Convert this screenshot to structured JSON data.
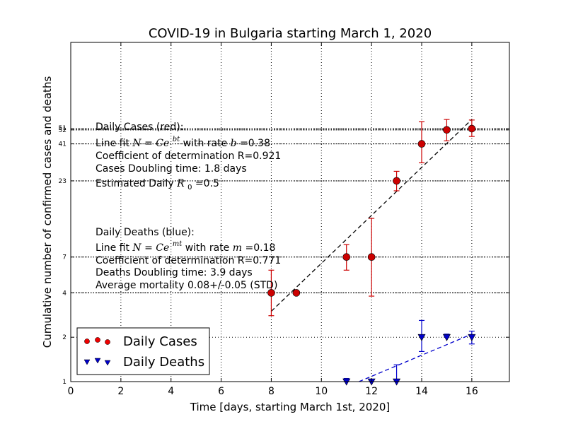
{
  "chart_data": {
    "type": "scatter",
    "title": "COVID-19 in Bulgaria starting March 1, 2020",
    "xlabel": "Time [days, starting March 1st, 2020]",
    "ylabel": "Cumulative number of confirmed cases and deaths",
    "xlim": [
      0,
      17.5
    ],
    "ylim": [
      1,
      200
    ],
    "yscale": "log",
    "grid": true,
    "legend_position": "lower-left",
    "x_ticks": [
      "0",
      "2",
      "4",
      "6",
      "8",
      "10",
      "12",
      "14",
      "16"
    ],
    "y_ticks": [
      "1",
      "2",
      "4",
      "7",
      "23",
      "41",
      "51",
      "52"
    ],
    "series": [
      {
        "name": "Daily Cases",
        "color": "#cc0000",
        "marker": "circle",
        "x": [
          8,
          9,
          11,
          12,
          13,
          14,
          15,
          16
        ],
        "y": [
          4,
          4,
          7,
          7,
          23,
          41,
          51,
          52
        ],
        "err_lo": [
          1.2,
          0,
          1.3,
          3.2,
          3.3,
          10.5,
          8,
          6
        ],
        "err_hi": [
          1.7,
          0,
          1.5,
          5.8,
          3.7,
          17,
          9,
          7.5
        ]
      },
      {
        "name": "Daily Deaths",
        "color": "#0000cc",
        "marker": "triangle-down",
        "x": [
          11,
          12,
          13,
          14,
          15,
          16
        ],
        "y": [
          1,
          1,
          1,
          2,
          2,
          2
        ],
        "err_lo": [
          0,
          0,
          0,
          0.4,
          0,
          0.2
        ],
        "err_hi": [
          0.05,
          0,
          0.3,
          0.6,
          0.1,
          0.2
        ]
      }
    ],
    "fits": [
      {
        "series": "Daily Cases",
        "color": "#000000",
        "style": "dashed",
        "x": [
          8,
          16
        ],
        "y": [
          3.0,
          60
        ]
      },
      {
        "series": "Daily Deaths",
        "color": "#0000cc",
        "style": "dashed",
        "x": [
          11.5,
          16
        ],
        "y": [
          1.0,
          2.1
        ]
      }
    ],
    "reference_lines": [
      4,
      7,
      23,
      41,
      51,
      52
    ],
    "annotations": {
      "cases_header": "Daily Cases (red):",
      "cases_fit_prefix": "Line fit ",
      "cases_fit_formula_base": "N",
      "cases_fit_formula_mid": "=",
      "cases_fit_formula_c": "Ce",
      "cases_fit_formula_exp": "bt",
      "cases_fit_rate_label": " with rate ",
      "cases_fit_rate_sym": "b",
      "cases_fit_rate_val": "=0.38",
      "cases_r": "Coefficient of determination R=0.921",
      "cases_doubling": "Cases Doubling time: 1.8 days",
      "cases_r0_prefix": "Estimated Daily ",
      "cases_r0_sym": "R",
      "cases_r0_sub": "0",
      "cases_r0_val": " =0.5",
      "deaths_header": "Daily Deaths (blue):",
      "deaths_fit_prefix": "Line fit ",
      "deaths_fit_formula_base": "N",
      "deaths_fit_formula_mid": "=",
      "deaths_fit_formula_c": "Ce",
      "deaths_fit_formula_exp": "mt",
      "deaths_fit_rate_label": " with rate ",
      "deaths_fit_rate_sym": "m",
      "deaths_fit_rate_val": "=0.18",
      "deaths_r": "Coefficient of determination R=0.771",
      "deaths_doubling": "Deaths Doubling time: 3.9 days",
      "deaths_mortality": "Average mortality 0.08+/-0.05 (STD)"
    }
  }
}
